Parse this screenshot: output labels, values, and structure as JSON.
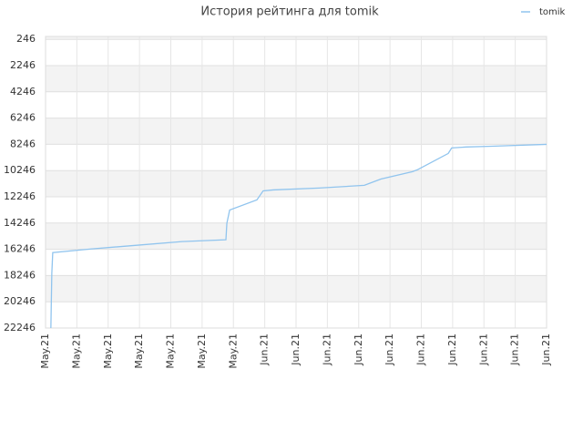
{
  "chart_data": {
    "type": "line",
    "title": "История рейтинга для tomik",
    "y_inverted": true,
    "grid": true,
    "legend": "top-right",
    "xlim": [
      0,
      16
    ],
    "xticks": [
      {
        "value": 0,
        "label": "May.21"
      },
      {
        "value": 1,
        "label": "May.21"
      },
      {
        "value": 2,
        "label": "May.21"
      },
      {
        "value": 3,
        "label": "May.21"
      },
      {
        "value": 4,
        "label": "May.21"
      },
      {
        "value": 5,
        "label": "May.21"
      },
      {
        "value": 6,
        "label": "May.21"
      },
      {
        "value": 7,
        "label": "Jun.21"
      },
      {
        "value": 8,
        "label": "Jun.21"
      },
      {
        "value": 9,
        "label": "Jun.21"
      },
      {
        "value": 10,
        "label": "Jun.21"
      },
      {
        "value": 11,
        "label": "Jun.21"
      },
      {
        "value": 12,
        "label": "Jun.21"
      },
      {
        "value": 13,
        "label": "Jun.21"
      },
      {
        "value": 14,
        "label": "Jun.21"
      },
      {
        "value": 15,
        "label": "Jun.21"
      },
      {
        "value": 16,
        "label": "Jun.21"
      }
    ],
    "ylim": [
      24,
      22246
    ],
    "yticks": [
      246,
      2246,
      4246,
      6246,
      8246,
      10246,
      12246,
      14246,
      16246,
      18246,
      20246,
      22246
    ],
    "x": [
      0.17,
      0.2,
      0.23,
      1.45,
      2.91,
      4.36,
      5.76,
      5.79,
      5.88,
      6.75,
      6.95,
      7.27,
      8.73,
      10.18,
      10.71,
      11.72,
      11.87,
      12.86,
      12.97,
      13.44,
      14.25,
      16
    ],
    "series": [
      {
        "name": "tomik",
        "color": "#90c4ee",
        "values": [
          22246,
          18080,
          16500,
          16220,
          15940,
          15660,
          15520,
          14270,
          13250,
          12480,
          11790,
          11720,
          11580,
          11370,
          10890,
          10330,
          10190,
          8940,
          8520,
          8450,
          8390,
          8250
        ]
      }
    ]
  }
}
